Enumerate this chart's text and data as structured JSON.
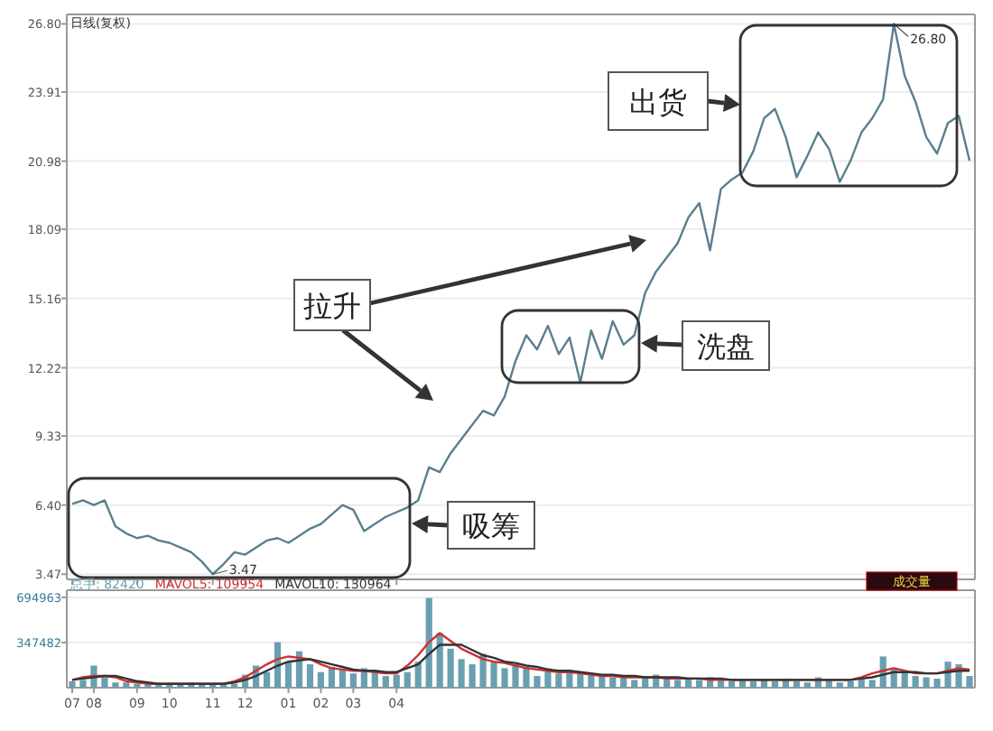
{
  "chart_data": [
    {
      "type": "line",
      "title": "日线(复权)",
      "color": "#5a7f8f",
      "grid": "y",
      "tick_labels": "y",
      "ylim": [
        3.25,
        27.2
      ],
      "yticks": [
        {
          "value": 3.47,
          "label": "3.47"
        },
        {
          "value": 6.4,
          "label": "6.40"
        },
        9.33,
        12.22,
        15.16,
        18.09,
        20.98,
        23.91,
        {
          "value": 26.8,
          "label": "26.80"
        }
      ],
      "categories": [
        "07",
        null,
        "08",
        null,
        null,
        null,
        "09",
        null,
        null,
        "10",
        null,
        null,
        null,
        "11",
        null,
        null,
        "12",
        null,
        null,
        null,
        "01",
        null,
        null,
        "02",
        null,
        null,
        "03",
        null,
        null,
        null,
        "04",
        null,
        null,
        null,
        null,
        null,
        null,
        null,
        null,
        null,
        null,
        null,
        null,
        null,
        null,
        null,
        null,
        null,
        null,
        null,
        null,
        null,
        null,
        null,
        null,
        null,
        null,
        null,
        null,
        null,
        null,
        null,
        null,
        null,
        null,
        null,
        null,
        null,
        null,
        null,
        null,
        null,
        null,
        null,
        null,
        null,
        null,
        null,
        null,
        null,
        null,
        null,
        null,
        null
      ],
      "values": [
        6.45,
        6.6,
        6.4,
        6.6,
        5.5,
        5.2,
        5.0,
        5.1,
        4.9,
        4.8,
        4.6,
        4.4,
        4.0,
        3.47,
        3.9,
        4.4,
        4.3,
        4.6,
        4.9,
        5.0,
        4.8,
        5.1,
        5.4,
        5.6,
        6.0,
        6.4,
        6.2,
        5.3,
        5.6,
        5.9,
        6.1,
        6.3,
        6.6,
        8.0,
        7.8,
        8.6,
        9.2,
        9.8,
        10.4,
        10.2,
        11.0,
        12.5,
        13.6,
        13.0,
        14.0,
        12.8,
        13.5,
        11.6,
        13.8,
        12.6,
        14.2,
        13.2,
        13.6,
        15.4,
        16.3,
        16.9,
        17.5,
        18.6,
        19.2,
        17.2,
        19.8,
        20.2,
        20.5,
        21.4,
        22.8,
        23.2,
        22.0,
        20.3,
        21.2,
        22.2,
        21.5,
        20.1,
        21.0,
        22.2,
        22.8,
        23.6,
        26.8,
        24.6,
        23.5,
        22.0,
        21.3,
        22.6,
        22.9,
        21.0
      ],
      "annotations": [
        "26.80",
        "3.47",
        "出货",
        "拉升",
        "洗盘",
        "吸筹"
      ]
    },
    {
      "type": "bar",
      "grid": "y",
      "ylim": [
        0,
        750000
      ],
      "yticks": [
        347482,
        694963
      ],
      "categories": [
        "07",
        null,
        "08",
        null,
        null,
        null,
        "09",
        null,
        null,
        "10",
        null,
        null,
        null,
        "11",
        null,
        null,
        "12",
        null,
        null,
        null,
        "01",
        null,
        null,
        "02",
        null,
        null,
        "03",
        null,
        null,
        null,
        "04",
        null,
        null,
        null,
        null,
        null,
        null,
        null,
        null,
        null,
        null,
        null,
        null,
        null,
        null,
        null,
        null,
        null,
        null,
        null,
        null,
        null,
        null,
        null,
        null,
        null,
        null,
        null,
        null,
        null,
        null,
        null,
        null,
        null,
        null,
        null,
        null,
        null,
        null,
        null,
        null,
        null,
        null,
        null,
        null,
        null,
        null,
        null,
        null,
        null,
        null,
        null,
        null,
        null
      ],
      "annotations": [
        "成交量"
      ],
      "series": [
        {
          "name": "总手: 82420",
          "color": "#6a9fb0",
          "values": [
            50000,
            60000,
            170000,
            80000,
            40000,
            40000,
            30000,
            30000,
            30000,
            30000,
            30000,
            40000,
            30000,
            30000,
            30000,
            30000,
            100000,
            170000,
            120000,
            350000,
            200000,
            280000,
            180000,
            120000,
            160000,
            140000,
            110000,
            150000,
            120000,
            90000,
            100000,
            120000,
            200000,
            690000,
            420000,
            300000,
            220000,
            180000,
            260000,
            200000,
            150000,
            180000,
            160000,
            90000,
            150000,
            110000,
            130000,
            120000,
            100000,
            90000,
            80000,
            80000,
            60000,
            90000,
            100000,
            70000,
            60000,
            70000,
            60000,
            80000,
            60000,
            50000,
            60000,
            50000,
            60000,
            50000,
            70000,
            50000,
            40000,
            80000,
            60000,
            40000,
            50000,
            70000,
            60000,
            240000,
            150000,
            120000,
            90000,
            80000,
            70000,
            200000,
            180000,
            90000
          ]
        },
        {
          "name": "MAVOL5: 109954",
          "type": "line",
          "color": "#d03030",
          "values": [
            60000,
            80000,
            90000,
            90000,
            80000,
            50000,
            40000,
            30000,
            30000,
            30000,
            30000,
            30000,
            30000,
            30000,
            30000,
            50000,
            80000,
            130000,
            180000,
            220000,
            240000,
            230000,
            220000,
            180000,
            150000,
            140000,
            130000,
            130000,
            120000,
            110000,
            110000,
            170000,
            250000,
            350000,
            420000,
            360000,
            300000,
            260000,
            220000,
            200000,
            190000,
            170000,
            150000,
            140000,
            130000,
            120000,
            120000,
            110000,
            100000,
            90000,
            90000,
            80000,
            80000,
            80000,
            80000,
            70000,
            70000,
            70000,
            70000,
            60000,
            60000,
            60000,
            60000,
            60000,
            60000,
            60000,
            60000,
            60000,
            60000,
            60000,
            60000,
            60000,
            60000,
            80000,
            110000,
            130000,
            150000,
            130000,
            110000,
            110000,
            110000,
            130000,
            150000,
            140000
          ]
        },
        {
          "name": "MAVOL10: 130964",
          "type": "line",
          "color": "#333333",
          "values": [
            60000,
            70000,
            80000,
            90000,
            90000,
            70000,
            50000,
            40000,
            30000,
            30000,
            30000,
            30000,
            30000,
            30000,
            30000,
            40000,
            60000,
            90000,
            130000,
            170000,
            200000,
            210000,
            220000,
            200000,
            180000,
            160000,
            140000,
            130000,
            130000,
            120000,
            120000,
            150000,
            180000,
            260000,
            330000,
            330000,
            330000,
            290000,
            250000,
            230000,
            200000,
            190000,
            170000,
            160000,
            140000,
            130000,
            130000,
            120000,
            110000,
            100000,
            100000,
            90000,
            90000,
            80000,
            80000,
            80000,
            80000,
            70000,
            70000,
            70000,
            70000,
            60000,
            60000,
            60000,
            60000,
            60000,
            60000,
            60000,
            60000,
            60000,
            60000,
            60000,
            60000,
            70000,
            80000,
            100000,
            120000,
            120000,
            120000,
            110000,
            110000,
            120000,
            130000,
            130000
          ]
        }
      ]
    }
  ]
}
